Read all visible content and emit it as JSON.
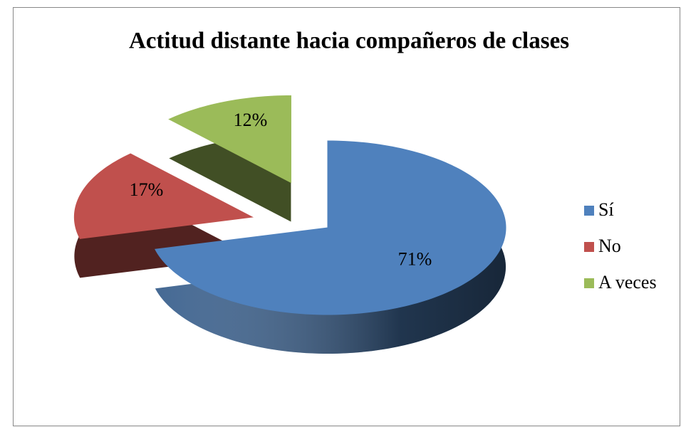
{
  "chart_data": {
    "type": "pie",
    "title": "Actitud distante hacia compañeros de clases",
    "categories": [
      "Sí",
      "No",
      "A veces"
    ],
    "values": [
      71,
      17,
      12
    ],
    "value_labels": [
      "71%",
      "17%",
      "12%"
    ],
    "colors": [
      "#4f81bd",
      "#c0504d",
      "#9bbb59"
    ],
    "legend": "right"
  }
}
